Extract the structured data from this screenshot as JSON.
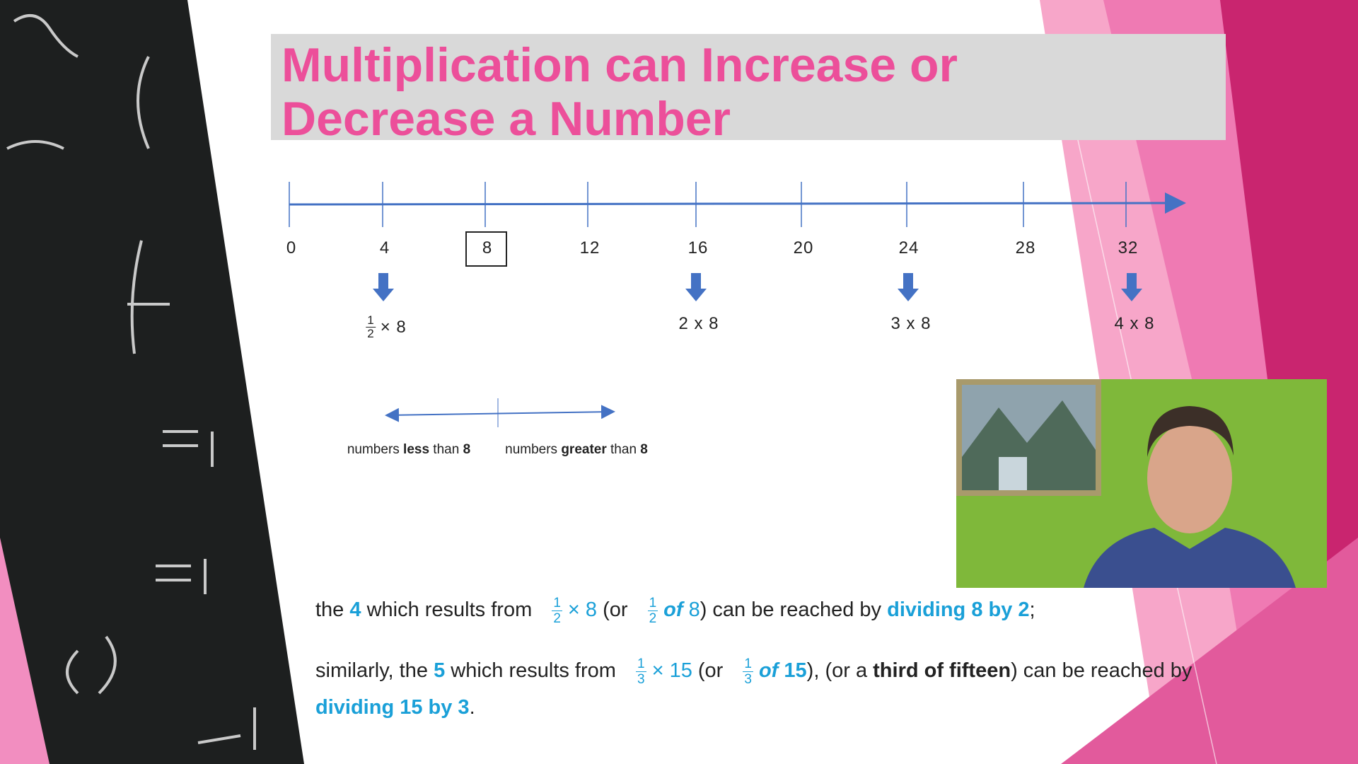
{
  "slide": {
    "title_lines": [
      "Multiplication can Increase or",
      "Decrease a Number"
    ],
    "number_line": {
      "labels": [
        "0",
        "4",
        "8",
        "12",
        "16",
        "20",
        "24",
        "28",
        "32"
      ]
    },
    "products": [
      {
        "numerator": "1",
        "denominator": "2",
        "text": "× 8"
      },
      {
        "text": "2 x 8"
      },
      {
        "text": "3 x 8"
      },
      {
        "text": "4 x 8"
      }
    ],
    "range_labels": [
      [
        {
          "text": "numbers ",
          "style": "plain"
        },
        {
          "text": "less",
          "style": "bold"
        },
        {
          "text": " than ",
          "style": "plain"
        },
        {
          "text": "8",
          "style": "bold"
        }
      ],
      [
        {
          "text": "numbers ",
          "style": "plain"
        },
        {
          "text": "greater",
          "style": "bold"
        },
        {
          "text": " than ",
          "style": "plain"
        },
        {
          "text": "8",
          "style": "bold"
        }
      ]
    ],
    "paragraphs": [
      [
        {
          "text": "the ",
          "style": "plain"
        },
        {
          "text": "4",
          "style": "blue-bold"
        },
        {
          "text": " which results from ",
          "style": "plain"
        },
        {
          "numerator": "1",
          "denominator": "2",
          "style": "frac"
        },
        {
          "text": "× 8",
          "style": "blue"
        },
        {
          "text": " (or ",
          "style": "plain"
        },
        {
          "numerator": "1",
          "denominator": "2",
          "style": "frac"
        },
        {
          "text": "of",
          "style": "blue-bold-italic"
        },
        {
          "text": " 8",
          "style": "blue"
        },
        {
          "text": ") can be reached by ",
          "style": "plain"
        },
        {
          "text": "dividing 8 by 2",
          "style": "blue-bold"
        },
        {
          "text": ";",
          "style": "plain"
        }
      ],
      [
        {
          "text": "similarly, the ",
          "style": "plain"
        },
        {
          "text": "5",
          "style": "blue-bold"
        },
        {
          "text": " which results from ",
          "style": "plain"
        },
        {
          "numerator": "1",
          "denominator": "3",
          "style": "frac"
        },
        {
          "text": "× 15",
          "style": "blue"
        },
        {
          "text": " (or ",
          "style": "plain"
        },
        {
          "numerator": "1",
          "denominator": "3",
          "style": "frac"
        },
        {
          "text": "of",
          "style": "blue-bold-italic"
        },
        {
          "text": " 15",
          "style": "blue-bold"
        },
        {
          "text": "), (or a ",
          "style": "plain"
        },
        {
          "text": "third of fifteen",
          "style": "bold"
        },
        {
          "text": ") can be reached by ",
          "style": "plain"
        },
        {
          "text": "dividing 15 by 3",
          "style": "blue-bold"
        },
        {
          "text": ".",
          "style": "plain"
        }
      ]
    ]
  }
}
